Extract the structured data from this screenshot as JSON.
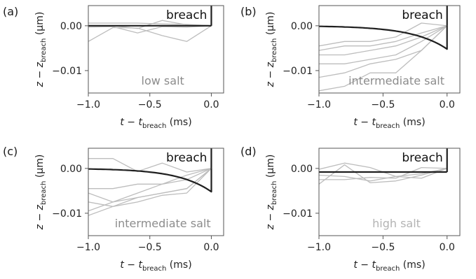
{
  "colors": {
    "frame": "#555555",
    "mean_line": "#1f1f1f",
    "trace_line": "#bdbdbd",
    "salt_label_mid": "#8c8c8c",
    "salt_label_light": "#b3b3b3"
  },
  "labels": {
    "x_axis": {
      "t": "t",
      "minus": " − ",
      "sub_t": "t",
      "sub": "breach",
      "units": " (ms)"
    },
    "y_axis": {
      "z": "z",
      "minus": " − ",
      "sub_z": "z",
      "sub": "breach",
      "units": " (μm)"
    },
    "breach": "breach"
  },
  "chart_data": [
    {
      "panel": "(a)",
      "type": "line",
      "annotation": "low salt",
      "annotation_tone": "mid",
      "show_ylabel": true,
      "show_ytick_labels": true,
      "xlim": [
        -1.0,
        0.1
      ],
      "ylim": [
        -0.015,
        0.0045
      ],
      "xticks": [
        -1.0,
        -0.5,
        0.0
      ],
      "xtick_labels": [
        "−1.0",
        "−0.5",
        "0.0"
      ],
      "yticks": [
        0.0,
        -0.01
      ],
      "ytick_labels": [
        "0.00",
        "−0.01"
      ],
      "x": [
        -1.0,
        -0.8,
        -0.6,
        -0.4,
        -0.2,
        0.0
      ],
      "mean": [
        0.0,
        0.0,
        0.0,
        0.0,
        0.0,
        0.0
      ],
      "traces": [
        [
          0.0006,
          0.0006,
          0.0006,
          0.0004,
          0.0003,
          0.0
        ],
        [
          -0.0003,
          -0.0002,
          -0.0016,
          -0.0002,
          -0.0003,
          0.0
        ],
        [
          -0.0035,
          -0.0004,
          -0.0005,
          -0.0022,
          -0.0035,
          0.0
        ],
        [
          0.0,
          0.0,
          -0.0006,
          0.0012,
          0.0002,
          0.0
        ]
      ],
      "breach_line": {
        "x": 0.0,
        "y_top": 0.0045
      }
    },
    {
      "panel": "(b)",
      "type": "line",
      "annotation": "intermediate salt",
      "annotation_tone": "mid",
      "show_ylabel": true,
      "show_ytick_labels": true,
      "xlim": [
        -1.0,
        0.1
      ],
      "ylim": [
        -0.015,
        0.0045
      ],
      "xticks": [
        -1.0,
        -0.5,
        0.0
      ],
      "xtick_labels": [
        "−1.0",
        "−0.5",
        "0.0"
      ],
      "yticks": [
        0.0,
        -0.01
      ],
      "ytick_labels": [
        "0.00",
        "−0.01"
      ],
      "x": [
        -1.0,
        -0.8,
        -0.6,
        -0.4,
        -0.2,
        0.0
      ],
      "mean_curve": "exp",
      "mean_params": {
        "a": -0.0052,
        "tau": 0.27
      },
      "traces": [
        [
          -0.0045,
          -0.0035,
          -0.0035,
          -0.0025,
          0.0006,
          0.0
        ],
        [
          -0.0055,
          -0.0045,
          -0.0045,
          -0.0035,
          -0.0016,
          0.0
        ],
        [
          -0.0065,
          -0.0065,
          -0.0055,
          -0.0045,
          -0.0025,
          0.0
        ],
        [
          -0.0085,
          -0.0085,
          -0.0075,
          -0.0065,
          -0.0035,
          0.0
        ],
        [
          -0.0115,
          -0.0105,
          -0.0085,
          -0.0075,
          -0.0055,
          0.0
        ],
        [
          -0.0145,
          -0.0135,
          -0.0105,
          -0.0105,
          -0.0055,
          0.0
        ]
      ],
      "breach_line": {
        "x": 0.0,
        "y_top": 0.0045
      }
    },
    {
      "panel": "(c)",
      "type": "line",
      "annotation": "intermediate salt",
      "annotation_tone": "mid",
      "show_ylabel": true,
      "show_ytick_labels": true,
      "xlim": [
        -1.0,
        0.1
      ],
      "ylim": [
        -0.015,
        0.0045
      ],
      "xticks": [
        -1.0,
        -0.5,
        0.0
      ],
      "xtick_labels": [
        "−1.0",
        "−0.5",
        "0.0"
      ],
      "yticks": [
        0.0,
        -0.01
      ],
      "ytick_labels": [
        "0.00",
        "−0.01"
      ],
      "x": [
        -1.0,
        -0.8,
        -0.6,
        -0.4,
        -0.2,
        0.0
      ],
      "mean_curve": "exp",
      "mean_params": {
        "a": -0.0052,
        "tau": 0.27
      },
      "traces": [
        [
          0.0022,
          0.0022,
          -0.0007,
          0.0012,
          -0.0008,
          0.0
        ],
        [
          -0.0045,
          -0.0045,
          -0.0035,
          -0.0035,
          -0.0015,
          0.0
        ],
        [
          -0.0055,
          -0.0075,
          -0.0055,
          -0.0035,
          -0.0025,
          0.0
        ],
        [
          -0.0075,
          -0.0085,
          -0.0065,
          -0.0055,
          -0.0045,
          0.0
        ],
        [
          -0.0095,
          -0.0075,
          -0.0065,
          -0.0055,
          -0.0045,
          0.0
        ],
        [
          -0.0105,
          -0.0085,
          -0.0075,
          -0.006,
          -0.0055,
          0.0
        ]
      ],
      "breach_line": {
        "x": 0.0,
        "y_top": 0.0045
      }
    },
    {
      "panel": "(d)",
      "type": "line",
      "annotation": "high salt",
      "annotation_tone": "light",
      "show_ylabel": true,
      "show_ytick_labels": true,
      "xlim": [
        -1.0,
        0.1
      ],
      "ylim": [
        -0.015,
        0.0045
      ],
      "xticks": [
        -1.0,
        -0.5,
        0.0
      ],
      "xtick_labels": [
        "−1.0",
        "−0.5",
        "0.0"
      ],
      "yticks": [
        0.0,
        -0.01
      ],
      "ytick_labels": [
        "0.00",
        "−0.01"
      ],
      "x": [
        -1.0,
        -0.8,
        -0.6,
        -0.4,
        -0.2,
        0.0
      ],
      "mean": [
        -0.0008,
        -0.0008,
        -0.0008,
        -0.0008,
        -0.0008,
        -0.0008
      ],
      "traces": [
        [
          -0.0002,
          0.0012,
          0.0002,
          -0.0018,
          -0.0012,
          0.0
        ],
        [
          -0.0015,
          -0.0018,
          -0.0028,
          -0.0018,
          -0.0022,
          0.0
        ],
        [
          -0.0035,
          0.0008,
          -0.0032,
          -0.0028,
          -0.0015,
          0.0
        ],
        [
          -0.0025,
          -0.0025,
          -0.002,
          -0.0022,
          0.0002,
          0.0
        ]
      ],
      "breach_line": {
        "x": 0.0,
        "y_top": 0.0045
      }
    }
  ]
}
